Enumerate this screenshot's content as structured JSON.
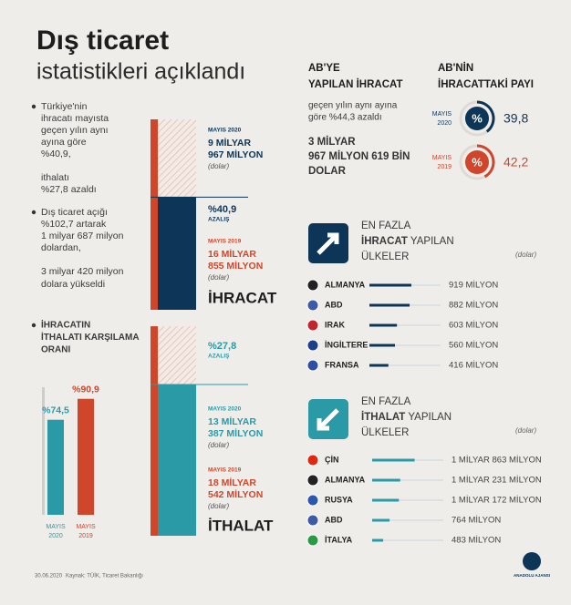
{
  "title": "Dış ticaret",
  "subtitle": "istatistikleri açıklandı",
  "notes": [
    [
      "Türkiye'nin",
      "ihracatı mayısta",
      "geçen yılın aynı",
      "ayına göre",
      "%40,9,"
    ],
    [
      "ithalatı",
      "%27,8 azaldı"
    ],
    [
      "Dış ticaret açığı",
      "%102,7 artarak",
      "1 milyar 687 milyon",
      "dolardan,"
    ],
    [
      "3 milyar 420 milyon",
      "dolara yükseldi"
    ]
  ],
  "export": {
    "label": "İHRACAT",
    "change": "%40,9",
    "change_note": "AZALIŞ",
    "periods": [
      {
        "period": "MAYIS 2020",
        "value": 9.967,
        "lines": [
          "9 MİLYAR",
          "967 MİLYON"
        ],
        "unit": "(dolar)"
      },
      {
        "period": "MAYIS 2019",
        "value": 16.855,
        "lines": [
          "16 MİLYAR",
          "855 MİLYON"
        ],
        "unit": "(dolar)"
      }
    ]
  },
  "import": {
    "label": "İTHALAT",
    "change": "%27,8",
    "change_note": "AZALIŞ",
    "periods": [
      {
        "period": "MAYIS 2020",
        "value": 13.387,
        "lines": [
          "13 MİLYAR",
          "387 MİLYON"
        ],
        "unit": "(dolar)"
      },
      {
        "period": "MAYIS 2019",
        "value": 18.542,
        "lines": [
          "18 MİLYAR",
          "542 MİLYON"
        ],
        "unit": "(dolar)"
      }
    ]
  },
  "coverage": {
    "title": [
      "İHRACATIN",
      "İTHALATI KARŞILAMA",
      "ORANI"
    ],
    "bars": [
      {
        "value": 74.5,
        "label": "%74,5",
        "period": [
          "MAYIS",
          "2020"
        ]
      },
      {
        "value": 90.9,
        "label": "%90,9",
        "period": [
          "MAYIS",
          "2019"
        ]
      }
    ]
  },
  "eu_export": {
    "title": [
      "AB'YE",
      "YAPILAN İHRACAT"
    ],
    "text": [
      "geçen yılın aynı ayına",
      "göre %44,3 azaldı"
    ],
    "amount": [
      "3 MİLYAR",
      "967 MİLYON 619 BİN",
      "DOLAR"
    ]
  },
  "eu_share": {
    "title": [
      "AB'NİN",
      "İHRACATTAKİ PAYI"
    ],
    "icon_text": "%",
    "items": [
      {
        "period": [
          "MAYIS",
          "2020"
        ],
        "value": 39.8,
        "label": "39,8"
      },
      {
        "period": [
          "MAYIS",
          "2019"
        ],
        "value": 42.2,
        "label": "42,2"
      }
    ]
  },
  "top_exports": {
    "first": "EN FAZLA",
    "highlight": "İHRACAT",
    "rest": "YAPILAN",
    "last": "ÜLKELER",
    "unit": "(dolar)",
    "rows": [
      {
        "country": "ALMANYA",
        "value": 919,
        "label": "919 MİLYON"
      },
      {
        "country": "ABD",
        "value": 882,
        "label": "882 MİLYON"
      },
      {
        "country": "IRAK",
        "value": 603,
        "label": "603 MİLYON"
      },
      {
        "country": "İNGİLTERE",
        "value": 560,
        "label": "560 MİLYON"
      },
      {
        "country": "FRANSA",
        "value": 416,
        "label": "416 MİLYON"
      }
    ]
  },
  "top_imports": {
    "first": "EN FAZLA",
    "highlight": "İTHALAT",
    "rest": "YAPILAN",
    "last": "ÜLKELER",
    "unit": "(dolar)",
    "rows": [
      {
        "country": "ÇİN",
        "value": 1863,
        "label": "1 MİLYAR 863 MİLYON"
      },
      {
        "country": "ALMANYA",
        "value": 1231,
        "label": "1 MİLYAR 231 MİLYON"
      },
      {
        "country": "RUSYA",
        "value": 1172,
        "label": "1 MİLYAR 172 MİLYON"
      },
      {
        "country": "ABD",
        "value": 764,
        "label": "764 MİLYON"
      },
      {
        "country": "İTALYA",
        "value": 483,
        "label": "483 MİLYON"
      }
    ]
  },
  "footer": {
    "date": "30.06.2020",
    "source": "Kaynak: TÜİK, Ticaret Bakanlığı",
    "logo": "ANADOLU AJANSI"
  }
}
